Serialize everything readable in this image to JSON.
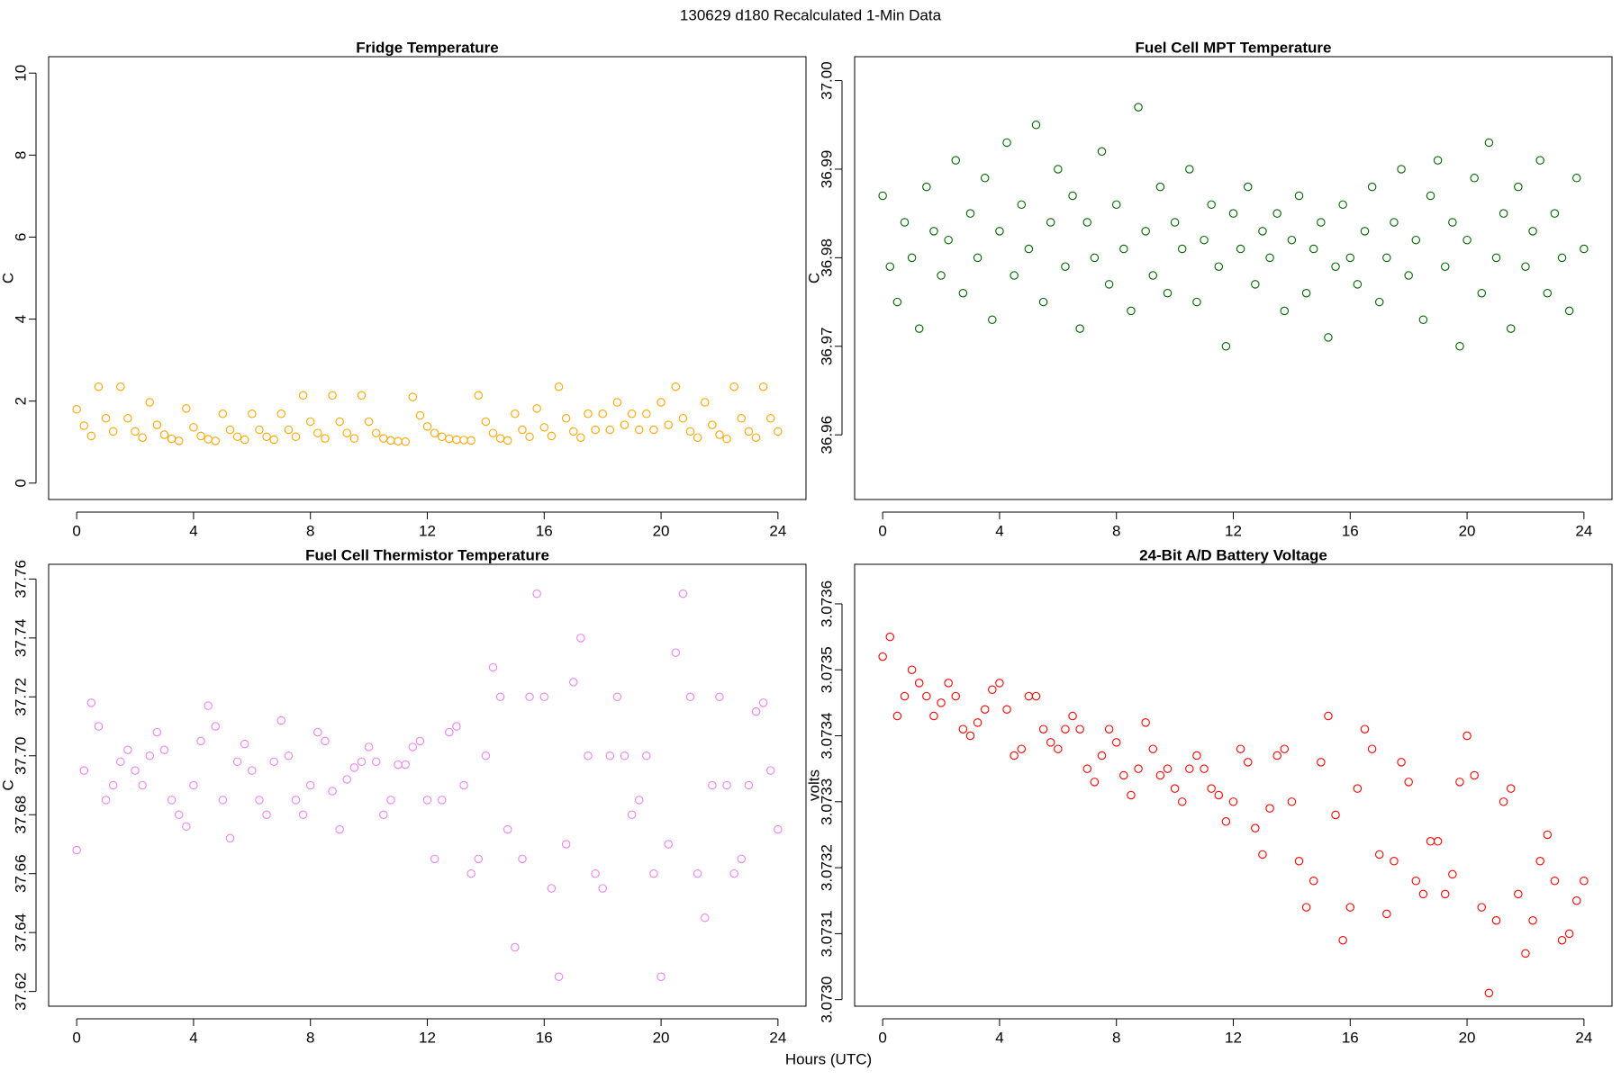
{
  "figure": {
    "title": "130629   d180   Recalculated 1-Min Data",
    "xlabel": "Hours (UTC)"
  },
  "chart_data": [
    {
      "type": "scatter",
      "title": "Fridge Temperature",
      "ylabel": "C",
      "color": "#ffa500",
      "xlim": [
        -0.96,
        24.96
      ],
      "xticks": [
        0,
        4,
        8,
        12,
        16,
        20,
        24
      ],
      "ylim": [
        -0.4,
        10.4
      ],
      "yticks": [
        0,
        2,
        4,
        6,
        8,
        10
      ],
      "x": [
        0,
        0.25,
        0.5,
        0.75,
        1,
        1.25,
        1.5,
        1.75,
        2,
        2.25,
        2.5,
        2.75,
        3,
        3.25,
        3.5,
        3.75,
        4,
        4.25,
        4.5,
        4.75,
        5,
        5.25,
        5.5,
        5.75,
        6,
        6.25,
        6.5,
        6.75,
        7,
        7.25,
        7.5,
        7.75,
        8,
        8.25,
        8.5,
        8.75,
        9,
        9.25,
        9.5,
        9.75,
        10,
        10.25,
        10.5,
        10.75,
        11,
        11.25,
        11.5,
        11.75,
        12,
        12.25,
        12.5,
        12.75,
        13,
        13.25,
        13.5,
        13.75,
        14,
        14.25,
        14.5,
        14.75,
        15,
        15.25,
        15.5,
        15.75,
        16,
        16.25,
        16.5,
        16.75,
        17,
        17.25,
        17.5,
        17.75,
        18,
        18.25,
        18.5,
        18.75,
        19,
        19.25,
        19.5,
        19.75,
        20,
        20.25,
        20.5,
        20.75,
        21,
        21.25,
        21.5,
        21.75,
        22,
        22.25,
        22.5,
        22.75,
        23,
        23.25,
        23.5,
        23.75,
        24
      ],
      "values": [
        1.8,
        1.4,
        1.15,
        2.35,
        1.58,
        1.26,
        2.35,
        1.58,
        1.26,
        1.11,
        1.97,
        1.42,
        1.18,
        1.08,
        1.03,
        1.82,
        1.36,
        1.15,
        1.07,
        1.03,
        1.69,
        1.3,
        1.13,
        1.06,
        1.69,
        1.3,
        1.13,
        1.06,
        1.69,
        1.3,
        1.13,
        2.14,
        1.5,
        1.22,
        1.09,
        2.14,
        1.5,
        1.22,
        1.09,
        2.14,
        1.5,
        1.22,
        1.09,
        1.04,
        1.02,
        1.01,
        2.1,
        1.65,
        1.38,
        1.22,
        1.13,
        1.08,
        1.06,
        1.05,
        1.04,
        2.14,
        1.5,
        1.22,
        1.09,
        1.04,
        1.69,
        1.3,
        1.13,
        1.82,
        1.36,
        1.15,
        2.35,
        1.58,
        1.26,
        1.11,
        1.69,
        1.3,
        1.69,
        1.3,
        1.97,
        1.42,
        1.69,
        1.3,
        1.69,
        1.3,
        1.97,
        1.42,
        2.35,
        1.58,
        1.26,
        1.11,
        1.97,
        1.42,
        1.18,
        1.08,
        2.35,
        1.58,
        1.26,
        1.11,
        2.35,
        1.58,
        1.26
      ]
    },
    {
      "type": "scatter",
      "title": "Fuel Cell MPT Temperature",
      "ylabel": "C",
      "color": "#006400",
      "xlim": [
        -0.96,
        24.96
      ],
      "xticks": [
        0,
        4,
        8,
        12,
        16,
        20,
        24
      ],
      "ylim": [
        36.9527,
        37.0027
      ],
      "yticks": [
        36.96,
        36.97,
        36.98,
        36.99,
        {
          "value": 37,
          "label": "37.00"
        }
      ],
      "x": [
        0,
        0.25,
        0.5,
        0.75,
        1,
        1.25,
        1.5,
        1.75,
        2,
        2.25,
        2.5,
        2.75,
        3,
        3.25,
        3.5,
        3.75,
        4,
        4.25,
        4.5,
        4.75,
        5,
        5.25,
        5.5,
        5.75,
        6,
        6.25,
        6.5,
        6.75,
        7,
        7.25,
        7.5,
        7.75,
        8,
        8.25,
        8.5,
        8.75,
        9,
        9.25,
        9.5,
        9.75,
        10,
        10.25,
        10.5,
        10.75,
        11,
        11.25,
        11.5,
        11.75,
        12,
        12.25,
        12.5,
        12.75,
        13,
        13.25,
        13.5,
        13.75,
        14,
        14.25,
        14.5,
        14.75,
        15,
        15.25,
        15.5,
        15.75,
        16,
        16.25,
        16.5,
        16.75,
        17,
        17.25,
        17.5,
        17.75,
        18,
        18.25,
        18.5,
        18.75,
        19,
        19.25,
        19.5,
        19.75,
        20,
        20.25,
        20.5,
        20.75,
        21,
        21.25,
        21.5,
        21.75,
        22,
        22.25,
        22.5,
        22.75,
        23,
        23.25,
        23.5,
        23.75,
        24
      ],
      "values": [
        36.987,
        36.979,
        36.975,
        36.984,
        36.98,
        36.972,
        36.988,
        36.983,
        36.978,
        36.982,
        36.991,
        36.976,
        36.985,
        36.98,
        36.989,
        36.973,
        36.983,
        36.993,
        36.978,
        36.986,
        36.981,
        36.995,
        36.975,
        36.984,
        36.99,
        36.979,
        36.987,
        36.972,
        36.984,
        36.98,
        36.992,
        36.977,
        36.986,
        36.981,
        36.974,
        36.997,
        36.983,
        36.978,
        36.988,
        36.976,
        36.984,
        36.981,
        36.99,
        36.975,
        36.982,
        36.986,
        36.979,
        36.97,
        36.985,
        36.981,
        36.988,
        36.977,
        36.983,
        36.98,
        36.985,
        36.974,
        36.982,
        36.987,
        36.976,
        36.981,
        36.984,
        36.971,
        36.979,
        36.986,
        36.98,
        36.977,
        36.983,
        36.988,
        36.975,
        36.98,
        36.984,
        36.99,
        36.978,
        36.982,
        36.973,
        36.987,
        36.991,
        36.979,
        36.984,
        36.97,
        36.982,
        36.989,
        36.976,
        36.993,
        36.98,
        36.985,
        36.972,
        36.988,
        36.979,
        36.983,
        36.991,
        36.976,
        36.985,
        36.98,
        36.974,
        36.989,
        36.981
      ]
    },
    {
      "type": "scatter",
      "title": "Fuel Cell Thermistor Temperature",
      "ylabel": "C",
      "color": "#ee82ee",
      "xlim": [
        -0.96,
        24.96
      ],
      "xticks": [
        0,
        4,
        8,
        12,
        16,
        20,
        24
      ],
      "ylim": [
        37.615,
        37.765
      ],
      "yticks": [
        37.62,
        37.64,
        37.66,
        37.68,
        {
          "value": 37.7,
          "label": "37.70"
        },
        37.72,
        37.74,
        37.76
      ],
      "x": [
        0,
        0.25,
        0.5,
        0.75,
        1,
        1.25,
        1.5,
        1.75,
        2,
        2.25,
        2.5,
        2.75,
        3,
        3.25,
        3.5,
        3.75,
        4,
        4.25,
        4.5,
        4.75,
        5,
        5.25,
        5.5,
        5.75,
        6,
        6.25,
        6.5,
        6.75,
        7,
        7.25,
        7.5,
        7.75,
        8,
        8.25,
        8.5,
        8.75,
        9,
        9.25,
        9.5,
        9.75,
        10,
        10.25,
        10.5,
        10.75,
        11,
        11.25,
        11.5,
        11.75,
        12,
        12.25,
        12.5,
        12.75,
        13,
        13.25,
        13.5,
        13.75,
        14,
        14.25,
        14.5,
        14.75,
        15,
        15.25,
        15.5,
        15.75,
        16,
        16.25,
        16.5,
        16.75,
        17,
        17.25,
        17.5,
        17.75,
        18,
        18.25,
        18.5,
        18.75,
        19,
        19.25,
        19.5,
        19.75,
        20,
        20.25,
        20.5,
        20.75,
        21,
        21.25,
        21.5,
        21.75,
        22,
        22.25,
        22.5,
        22.75,
        23,
        23.25,
        23.5,
        23.75,
        24
      ],
      "values": [
        37.668,
        37.695,
        37.718,
        37.71,
        37.685,
        37.69,
        37.698,
        37.702,
        37.695,
        37.69,
        37.7,
        37.708,
        37.702,
        37.685,
        37.68,
        37.676,
        37.69,
        37.705,
        37.717,
        37.71,
        37.685,
        37.672,
        37.698,
        37.704,
        37.695,
        37.685,
        37.68,
        37.698,
        37.712,
        37.7,
        37.685,
        37.68,
        37.69,
        37.708,
        37.705,
        37.688,
        37.675,
        37.692,
        37.696,
        37.698,
        37.703,
        37.698,
        37.68,
        37.685,
        37.697,
        37.697,
        37.703,
        37.705,
        37.685,
        37.665,
        37.685,
        37.708,
        37.71,
        37.69,
        37.66,
        37.665,
        37.7,
        37.73,
        37.72,
        37.675,
        37.635,
        37.665,
        37.72,
        37.755,
        37.72,
        37.655,
        37.625,
        37.67,
        37.725,
        37.74,
        37.7,
        37.66,
        37.655,
        37.7,
        37.72,
        37.7,
        37.68,
        37.685,
        37.7,
        37.66,
        37.625,
        37.67,
        37.735,
        37.755,
        37.72,
        37.66,
        37.645,
        37.69,
        37.72,
        37.69,
        37.66,
        37.665,
        37.69,
        37.715,
        37.718,
        37.695,
        37.675
      ]
    },
    {
      "type": "scatter",
      "title": "24-Bit A/D Battery Voltage",
      "ylabel": "volts",
      "color": "#ff0000",
      "xlim": [
        -0.96,
        24.96
      ],
      "xticks": [
        0,
        4,
        8,
        12,
        16,
        20,
        24
      ],
      "ylim": [
        3.07299,
        3.07366
      ],
      "yticks": [
        {
          "value": 3.073,
          "label": "3.0730"
        },
        3.0731,
        3.0732,
        3.0733,
        3.0734,
        3.0735,
        3.0736
      ],
      "x": [
        0,
        0.25,
        0.5,
        0.75,
        1,
        1.25,
        1.5,
        1.75,
        2,
        2.25,
        2.5,
        2.75,
        3,
        3.25,
        3.5,
        3.75,
        4,
        4.25,
        4.5,
        4.75,
        5,
        5.25,
        5.5,
        5.75,
        6,
        6.25,
        6.5,
        6.75,
        7,
        7.25,
        7.5,
        7.75,
        8,
        8.25,
        8.5,
        8.75,
        9,
        9.25,
        9.5,
        9.75,
        10,
        10.25,
        10.5,
        10.75,
        11,
        11.25,
        11.5,
        11.75,
        12,
        12.25,
        12.5,
        12.75,
        13,
        13.25,
        13.5,
        13.75,
        14,
        14.25,
        14.5,
        14.75,
        15,
        15.25,
        15.5,
        15.75,
        16,
        16.25,
        16.5,
        16.75,
        17,
        17.25,
        17.5,
        17.75,
        18,
        18.25,
        18.5,
        18.75,
        19,
        19.25,
        19.5,
        19.75,
        20,
        20.25,
        20.5,
        20.75,
        21,
        21.25,
        21.5,
        21.75,
        22,
        22.25,
        22.5,
        22.75,
        23,
        23.25,
        23.5,
        23.75,
        24
      ],
      "values": [
        3.07352,
        3.07355,
        3.07343,
        3.07346,
        3.0735,
        3.07348,
        3.07346,
        3.07343,
        3.07345,
        3.07348,
        3.07346,
        3.07341,
        3.0734,
        3.07342,
        3.07344,
        3.07347,
        3.07348,
        3.07344,
        3.07337,
        3.07338,
        3.07346,
        3.07346,
        3.07341,
        3.07339,
        3.07338,
        3.07341,
        3.07343,
        3.07341,
        3.07335,
        3.07333,
        3.07337,
        3.07341,
        3.07339,
        3.07334,
        3.07331,
        3.07335,
        3.07342,
        3.07338,
        3.07334,
        3.07335,
        3.07332,
        3.0733,
        3.07335,
        3.07337,
        3.07335,
        3.07332,
        3.07331,
        3.07327,
        3.0733,
        3.07338,
        3.07336,
        3.07326,
        3.07322,
        3.07329,
        3.07337,
        3.07338,
        3.0733,
        3.07321,
        3.07314,
        3.07318,
        3.07336,
        3.07343,
        3.07328,
        3.07309,
        3.07314,
        3.07332,
        3.07341,
        3.07338,
        3.07322,
        3.07313,
        3.07321,
        3.07336,
        3.07333,
        3.07318,
        3.07316,
        3.07324,
        3.07324,
        3.07316,
        3.07319,
        3.07333,
        3.0734,
        3.07334,
        3.07314,
        3.07301,
        3.07312,
        3.0733,
        3.07332,
        3.07316,
        3.07307,
        3.07312,
        3.07321,
        3.07325,
        3.07318,
        3.07309,
        3.0731,
        3.07315,
        3.07318
      ]
    }
  ]
}
